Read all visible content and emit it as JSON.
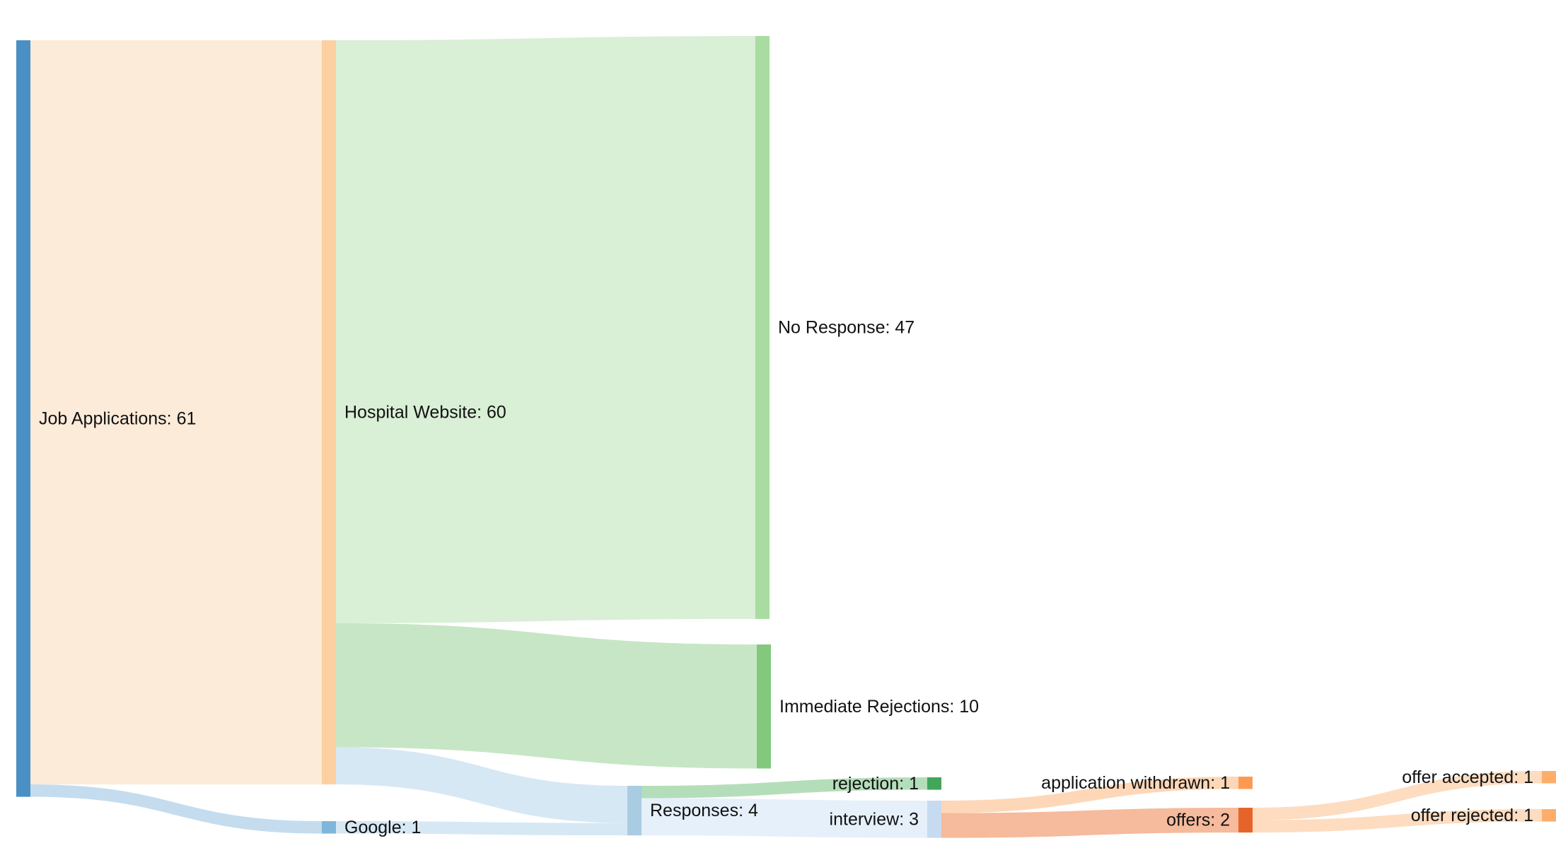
{
  "chart_data": {
    "type": "sankey",
    "nodes": [
      {
        "id": "job",
        "label": "Job Applications: 61",
        "value": 61,
        "color": "#4a90c4"
      },
      {
        "id": "hosp",
        "label": "Hospital Website: 60",
        "value": 60,
        "color": "#fdd0a2"
      },
      {
        "id": "google",
        "label": "Google: 1",
        "value": 1,
        "color": "#7fb6db"
      },
      {
        "id": "noresp",
        "label": "No Response: 47",
        "value": 47,
        "color": "#a8dca0"
      },
      {
        "id": "immrej",
        "label": "Immediate Rejections: 10",
        "value": 10,
        "color": "#84c87d"
      },
      {
        "id": "resp",
        "label": "Responses: 4",
        "value": 4,
        "color": "#a9cce3"
      },
      {
        "id": "rej",
        "label": "rejection: 1",
        "value": 1,
        "color": "#41a65a"
      },
      {
        "id": "interview",
        "label": "interview: 3",
        "value": 3,
        "color": "#c6dbef"
      },
      {
        "id": "withdrawn",
        "label": "application withdrawn: 1",
        "value": 1,
        "color": "#fd9a52"
      },
      {
        "id": "offers",
        "label": "offers: 2",
        "value": 2,
        "color": "#e6642a"
      },
      {
        "id": "accepted",
        "label": "offer accepted: 1",
        "value": 1,
        "color": "#fdae6b"
      },
      {
        "id": "offrej",
        "label": "offer rejected: 1",
        "value": 1,
        "color": "#fdae6b"
      }
    ],
    "links": [
      {
        "source": "job",
        "target": "hosp",
        "value": 60,
        "color": "#fdebd9"
      },
      {
        "source": "job",
        "target": "google",
        "value": 1,
        "color": "#c4dcee"
      },
      {
        "source": "hosp",
        "target": "noresp",
        "value": 47,
        "color": "#d9efd6"
      },
      {
        "source": "hosp",
        "target": "immrej",
        "value": 10,
        "color": "#c7e6c5"
      },
      {
        "source": "hosp",
        "target": "resp",
        "value": 3,
        "color": "#d6e8f4"
      },
      {
        "source": "google",
        "target": "resp",
        "value": 1,
        "color": "#d6e8f4"
      },
      {
        "source": "resp",
        "target": "rej",
        "value": 1,
        "color": "#b4deb9"
      },
      {
        "source": "resp",
        "target": "interview",
        "value": 3,
        "color": "#e6f0fa"
      },
      {
        "source": "interview",
        "target": "withdrawn",
        "value": 1,
        "color": "#fdd7b7"
      },
      {
        "source": "interview",
        "target": "offers",
        "value": 2,
        "color": "#f6ba9c"
      },
      {
        "source": "offers",
        "target": "accepted",
        "value": 1,
        "color": "#fddcc0"
      },
      {
        "source": "offers",
        "target": "offrej",
        "value": 1,
        "color": "#fddcc0"
      }
    ]
  }
}
